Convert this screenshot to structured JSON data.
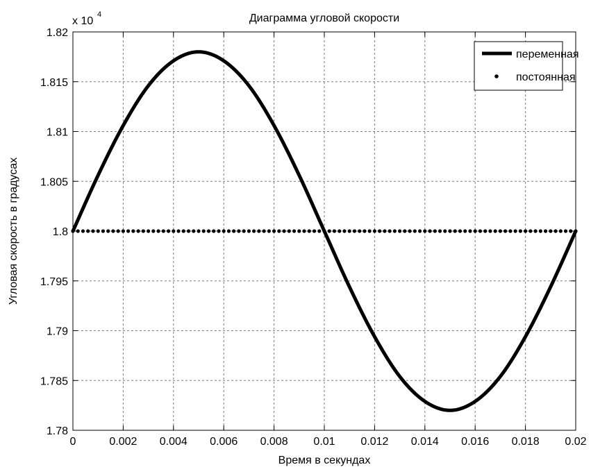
{
  "chart_data": {
    "type": "line",
    "title": "Диаграмма угловой скорости",
    "xlabel": "Время в секундах",
    "ylabel": "Угловая скорость в градусах",
    "y_multiplier_base": "x 10",
    "y_multiplier_exponent": "4",
    "xlim": [
      0,
      0.02
    ],
    "ylim": [
      1.78,
      1.82
    ],
    "x_ticks": [
      "0",
      "0.002",
      "0.004",
      "0.006",
      "0.008",
      "0.01",
      "0.012",
      "0.014",
      "0.016",
      "0.018",
      "0.02"
    ],
    "y_ticks": [
      "1.78",
      "1.785",
      "1.79",
      "1.795",
      "1.8",
      "1.805",
      "1.81",
      "1.815",
      "1.82"
    ],
    "grid": true,
    "legend_position": "top-right",
    "series": [
      {
        "name": "переменная",
        "style": "thick-solid-line",
        "color": "#000000",
        "x": [
          0,
          0.001,
          0.002,
          0.003,
          0.004,
          0.005,
          0.006,
          0.007,
          0.008,
          0.009,
          0.01,
          0.011,
          0.012,
          0.013,
          0.014,
          0.015,
          0.016,
          0.017,
          0.018,
          0.019,
          0.02
        ],
        "y": [
          1.8,
          1.8056,
          1.8106,
          1.8146,
          1.8171,
          1.818,
          1.8171,
          1.8146,
          1.8106,
          1.8056,
          1.8,
          1.7944,
          1.7894,
          1.7854,
          1.7829,
          1.782,
          1.7829,
          1.7854,
          1.7894,
          1.7944,
          1.8
        ]
      },
      {
        "name": "постоянная",
        "style": "dots",
        "color": "#000000",
        "x_start": 0,
        "x_end": 0.02,
        "y": 1.8
      }
    ]
  }
}
